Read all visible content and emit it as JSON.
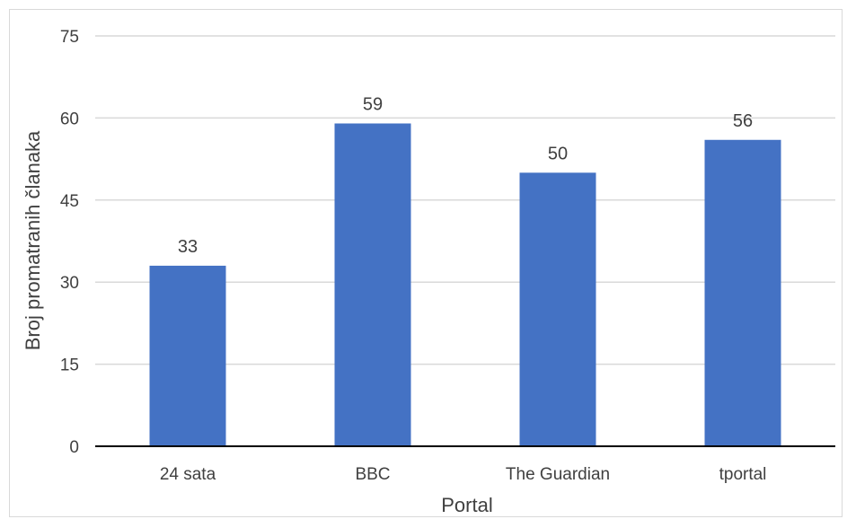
{
  "chart_data": {
    "type": "bar",
    "title": "",
    "xlabel": "Portal",
    "ylabel": "Broj promatranih članaka",
    "categories": [
      "24 sata",
      "BBC",
      "The Guardian",
      "tportal"
    ],
    "values": [
      33,
      59,
      50,
      56
    ],
    "data_labels": [
      "33",
      "59",
      "50",
      "56"
    ],
    "ylim": [
      0,
      75
    ],
    "yticks": [
      0,
      15,
      30,
      45,
      60,
      75
    ],
    "ytick_labels": [
      "0",
      "15",
      "30",
      "45",
      "60",
      "75"
    ],
    "grid": true,
    "legend": "none",
    "bar_color": "#4472c4",
    "gridline_color": "#d9d9d9",
    "axis_color": "#000000"
  }
}
